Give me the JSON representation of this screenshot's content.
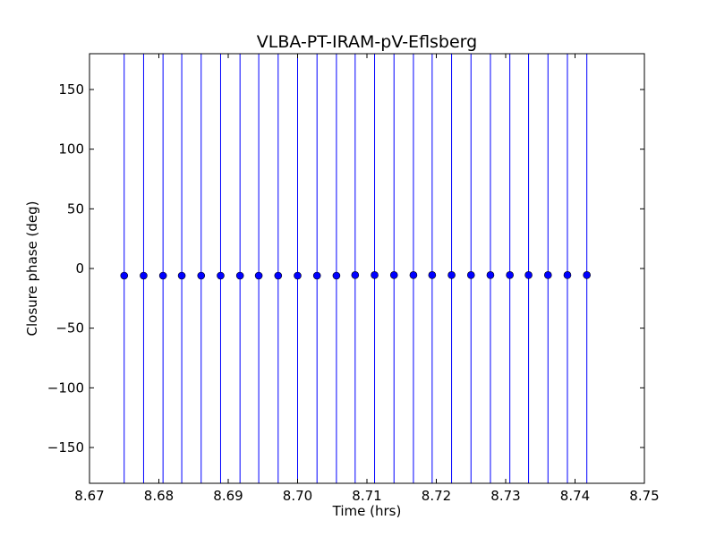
{
  "chart_data": {
    "type": "scatter",
    "title": "VLBA-PT-IRAM-pV-Eflsberg",
    "xlabel": "Time (hrs)",
    "ylabel": "Closure phase (deg)",
    "xlim": [
      8.67,
      8.75
    ],
    "ylim": [
      -180,
      180
    ],
    "xticks": [
      8.67,
      8.68,
      8.69,
      8.7,
      8.71,
      8.72,
      8.73,
      8.74,
      8.75
    ],
    "xtick_labels": [
      "8.67",
      "8.68",
      "8.69",
      "8.70",
      "8.71",
      "8.72",
      "8.73",
      "8.74",
      "8.75"
    ],
    "yticks": [
      150,
      100,
      50,
      0,
      -50,
      -100,
      -150
    ],
    "ytick_labels": [
      "150",
      "100",
      "50",
      "0",
      "−50",
      "−100",
      "−150"
    ],
    "grid": false,
    "marker_color": "#0000ff",
    "errorbar_color": "#0000ff",
    "series": [
      {
        "x": [
          8.675,
          8.6778,
          8.6806,
          8.6833,
          8.6861,
          8.6889,
          8.6917,
          8.6944,
          8.6972,
          8.7,
          8.7028,
          8.7056,
          8.7083,
          8.7111,
          8.7139,
          8.7167,
          8.7194,
          8.7222,
          8.725,
          8.7278,
          8.7306,
          8.7333,
          8.7361,
          8.7389,
          8.7417
        ],
        "y": [
          -6,
          -6,
          -6,
          -6,
          -6,
          -6,
          -6,
          -6,
          -6,
          -6,
          -6,
          -6,
          -5.5,
          -5.5,
          -5.5,
          -5.5,
          -5.5,
          -5.5,
          -5.5,
          -5.5,
          -5.5,
          -5.5,
          -5.5,
          -5.5,
          -5.5
        ],
        "yerr_low": [
          -180,
          -180,
          -180,
          -180,
          -180,
          -180,
          -180,
          -180,
          -180,
          -180,
          -180,
          -180,
          -180,
          -180,
          -180,
          -180,
          -180,
          -180,
          -180,
          -180,
          -180,
          -180,
          -180,
          -180,
          -180
        ],
        "yerr_high": [
          180,
          180,
          180,
          180,
          180,
          180,
          180,
          180,
          180,
          180,
          180,
          180,
          180,
          180,
          180,
          180,
          180,
          180,
          180,
          180,
          180,
          180,
          180,
          180,
          180
        ]
      }
    ]
  }
}
